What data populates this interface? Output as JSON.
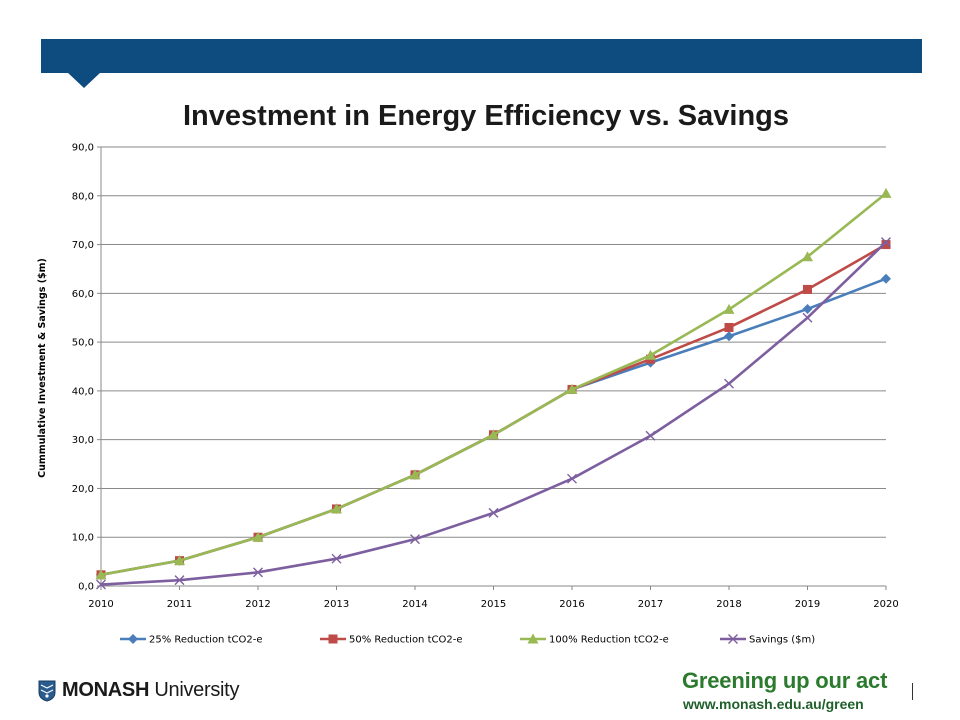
{
  "slide": {
    "title": "Investment in Energy Efficiency vs. Savings",
    "band_color": "#0e4c80",
    "brand": {
      "bold": "MONASH",
      "rest": " University"
    },
    "tagline": "Greening up our act",
    "tagline_color": "#2c7a2e",
    "url": "www.monash.edu.au/green"
  },
  "chart_data": {
    "type": "line",
    "title": "",
    "xlabel": "",
    "ylabel": "Cummulative Investment & Savings ($m)",
    "x": [
      2010,
      2011,
      2012,
      2013,
      2014,
      2015,
      2016,
      2017,
      2018,
      2019,
      2020
    ],
    "ylim": [
      0,
      90
    ],
    "yticks": [
      "0,0",
      "10,0",
      "20,0",
      "30,0",
      "40,0",
      "50,0",
      "60,0",
      "70,0",
      "80,0",
      "90,0"
    ],
    "grid": "horizontal",
    "legend": "bottom",
    "series": [
      {
        "name": "25% Reduction tCO2-e",
        "color": "#4a7ebb",
        "marker": "diamond",
        "values": [
          2.3,
          5.2,
          10.0,
          15.8,
          22.8,
          31.0,
          40.3,
          45.8,
          51.2,
          56.8,
          63.0
        ]
      },
      {
        "name": "50% Reduction tCO2-e",
        "color": "#be4b48",
        "marker": "square",
        "values": [
          2.3,
          5.2,
          10.0,
          15.8,
          22.8,
          31.0,
          40.3,
          46.5,
          53.0,
          60.8,
          70.0
        ]
      },
      {
        "name": "100% Reduction tCO2-e",
        "color": "#98b954",
        "marker": "triangle",
        "values": [
          2.3,
          5.2,
          10.0,
          15.8,
          22.8,
          31.0,
          40.3,
          47.3,
          56.7,
          67.5,
          80.5
        ]
      },
      {
        "name": "Savings ($m)",
        "color": "#7d5fa0",
        "marker": "x",
        "values": [
          0.3,
          1.2,
          2.8,
          5.6,
          9.6,
          15.0,
          22.0,
          30.8,
          41.5,
          55.0,
          70.5
        ]
      }
    ]
  }
}
